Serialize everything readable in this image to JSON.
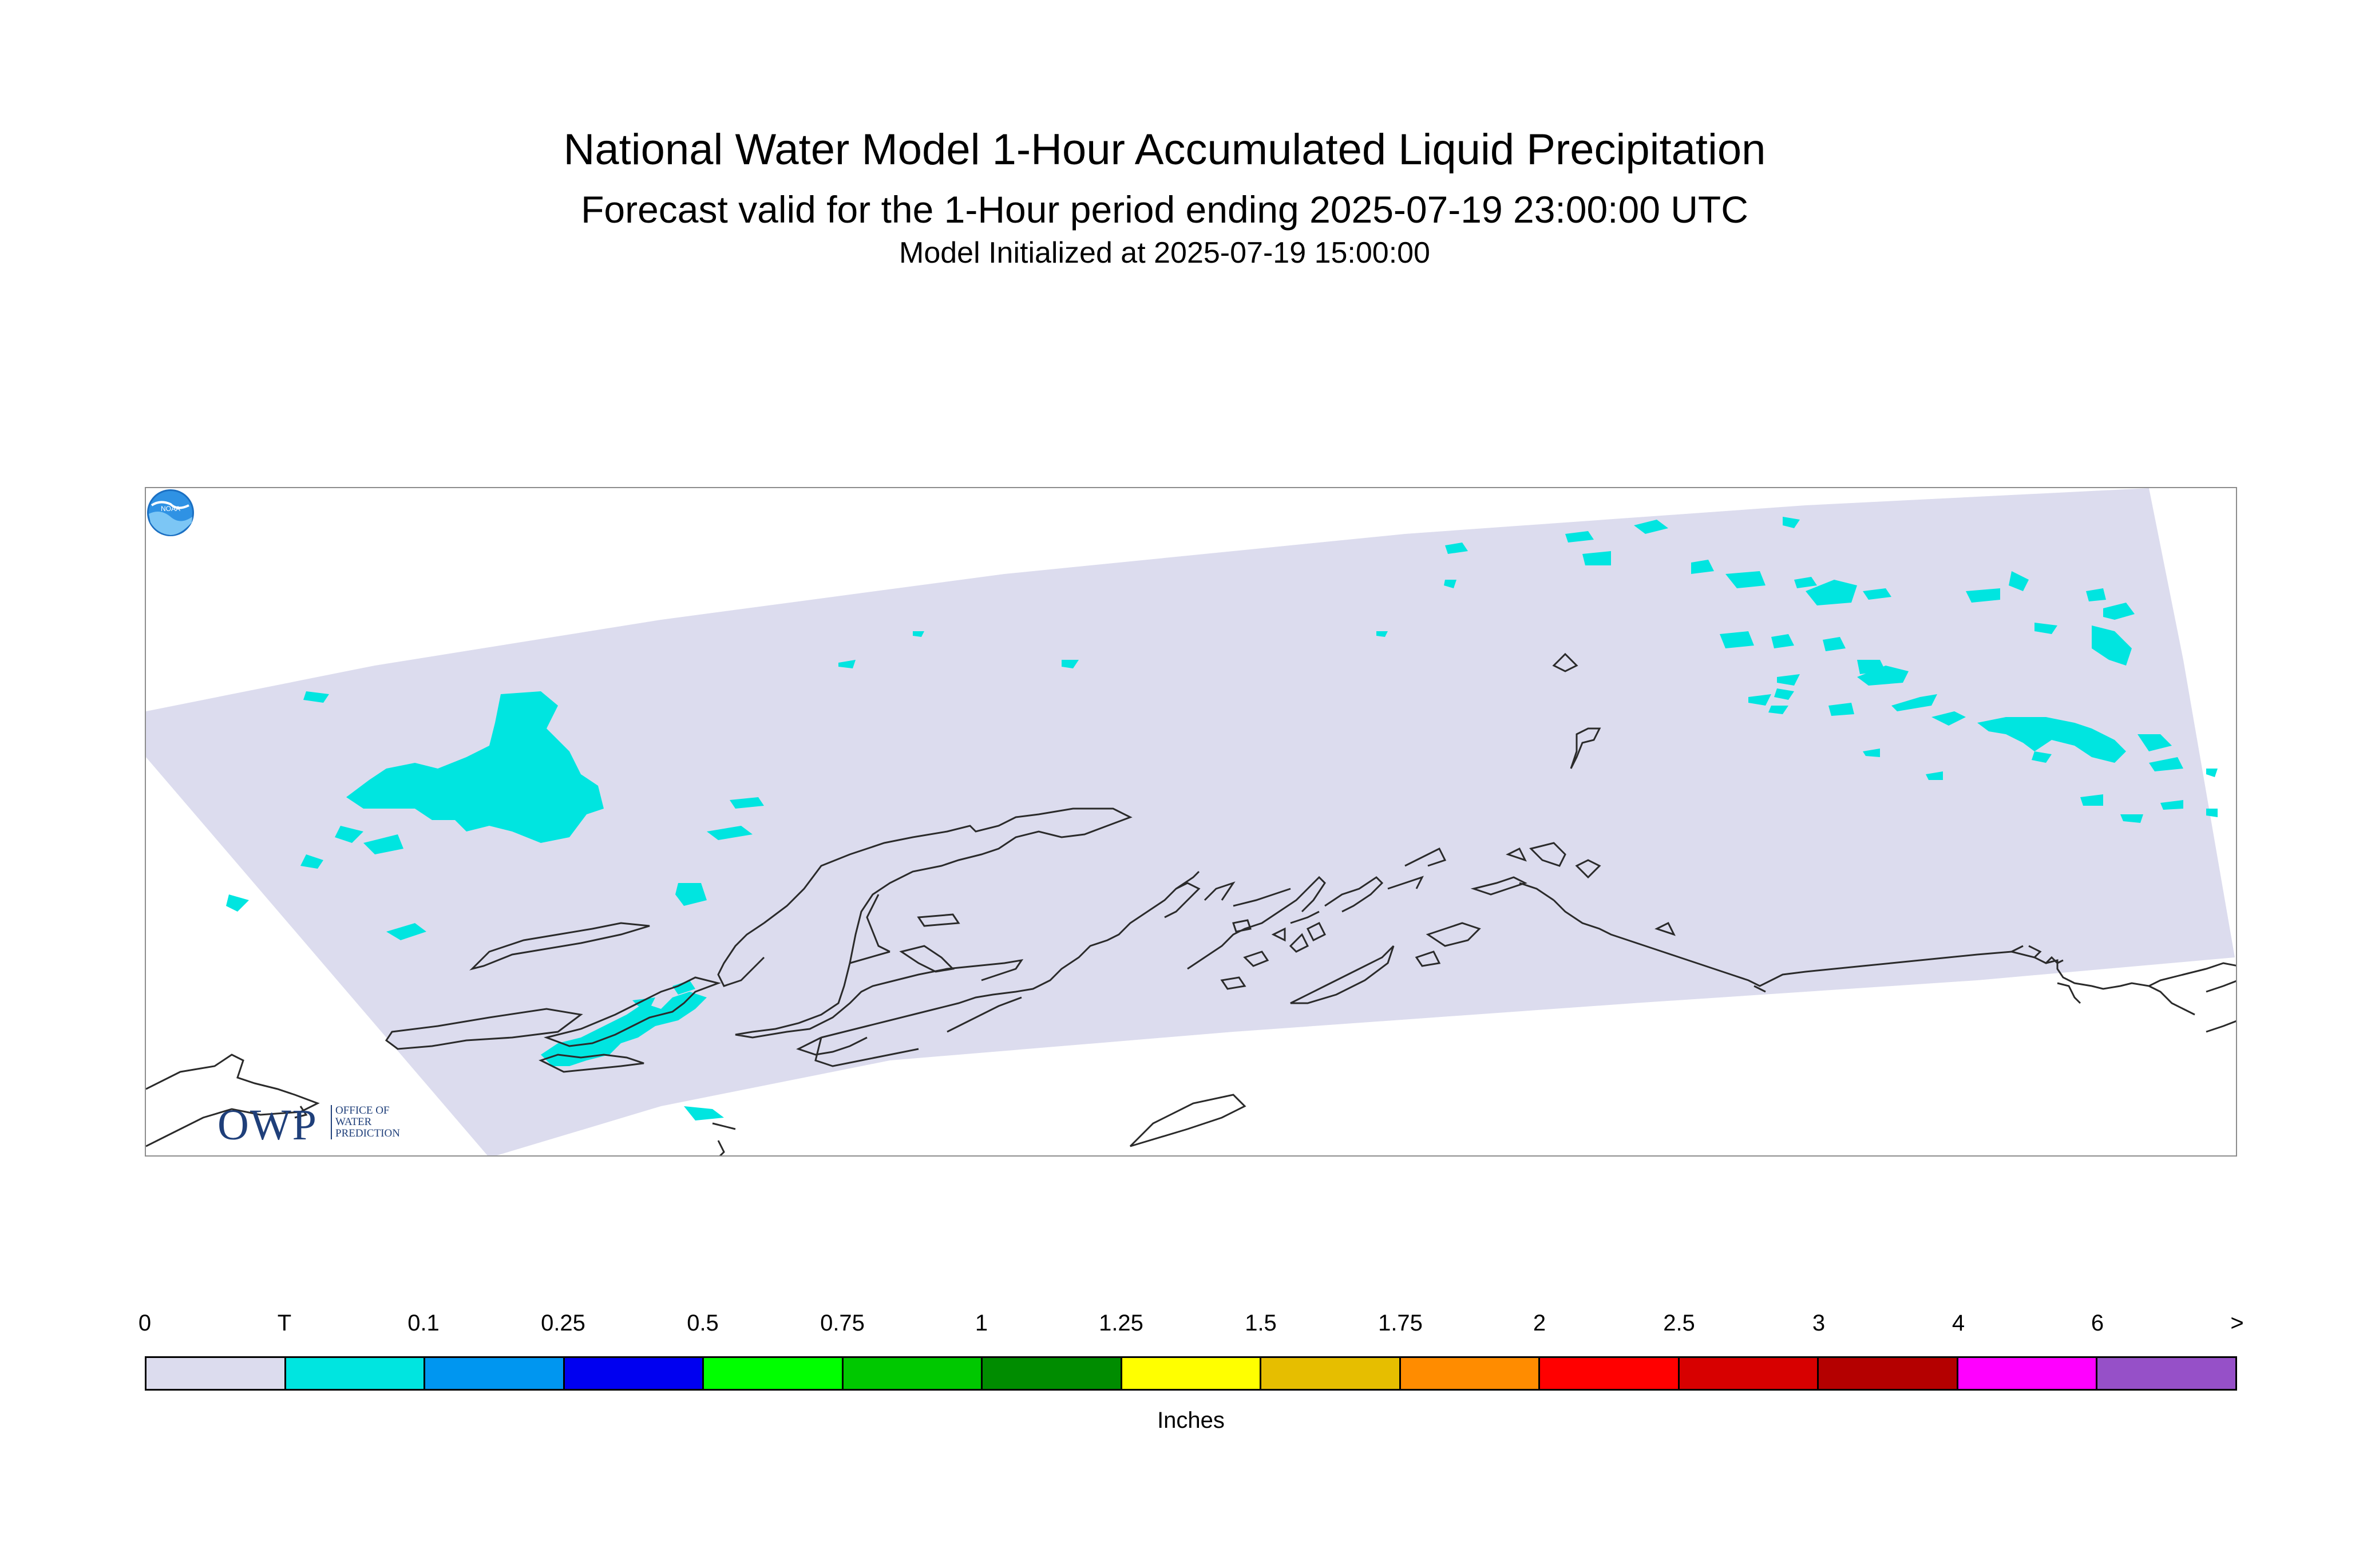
{
  "title": {
    "main": "National Water Model 1-Hour Accumulated Liquid Precipitation",
    "sub": "Forecast valid for the 1-Hour period ending 2025-07-19 23:00:00 UTC",
    "init": "Model Initialized at 2025-07-19 15:00:00"
  },
  "map": {
    "domain_fill_color": "#dcdcee",
    "trace_color": "#00e5e0",
    "coastline_color": "#2a2a2a"
  },
  "logos": {
    "owp_letters": "OWP",
    "owp_words": [
      "OFFICE OF",
      "WATER",
      "PREDICTION"
    ],
    "noaa": "NOAA"
  },
  "legend": {
    "tick_labels": [
      "0",
      "T",
      "0.1",
      "0.25",
      "0.5",
      "0.75",
      "1",
      "1.25",
      "1.5",
      "1.75",
      "2",
      "2.5",
      "3",
      "4",
      "6",
      ">"
    ],
    "colors": [
      "#dcdcee",
      "#00e5e0",
      "#0096f0",
      "#0000f0",
      "#00ff00",
      "#00c800",
      "#008c00",
      "#ffff00",
      "#e6be00",
      "#ff8c00",
      "#ff0000",
      "#d70000",
      "#b40000",
      "#ff00ff",
      "#9650c8"
    ],
    "units": "Inches"
  }
}
